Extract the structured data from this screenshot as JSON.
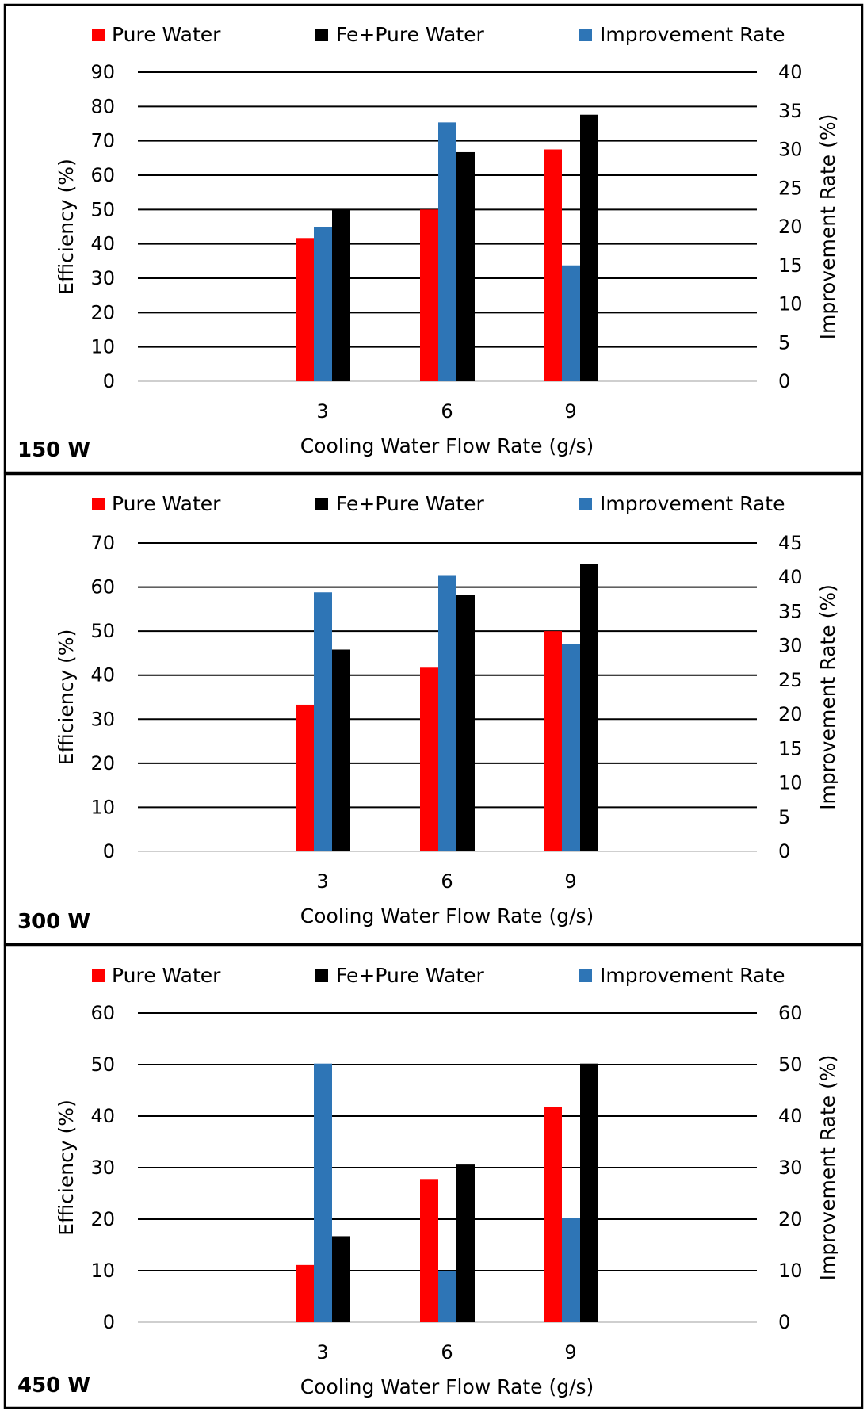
{
  "chart_data": [
    {
      "type": "bar",
      "panel_label": "150 W",
      "categories": [
        "3",
        "6",
        "9"
      ],
      "xlabel": "Cooling Water Flow Rate (g/s)",
      "ylabel": "Efficiency (%)",
      "y2label": "Improvement Rate (%)",
      "ylim": [
        0,
        90
      ],
      "y2lim": [
        0,
        40
      ],
      "yticks": [
        "0",
        "10",
        "20",
        "30",
        "40",
        "50",
        "60",
        "70",
        "80",
        "90"
      ],
      "y2ticks": [
        "0",
        "5",
        "10",
        "15",
        "20",
        "25",
        "30",
        "35",
        "40"
      ],
      "grid": true,
      "legend_position": "top",
      "series": [
        {
          "name": "Pure Water",
          "axis": "left",
          "color": "#ff0000",
          "values": [
            41.7,
            50.0,
            67.5
          ]
        },
        {
          "name": "Improvement Rate",
          "axis": "right",
          "color": "#2e75b6",
          "values": [
            20.0,
            33.5,
            15.0
          ]
        },
        {
          "name": "Fe+Pure Water",
          "axis": "left",
          "color": "#000000",
          "values": [
            50.0,
            66.7,
            77.6
          ]
        }
      ]
    },
    {
      "type": "bar",
      "panel_label": "300 W",
      "categories": [
        "3",
        "6",
        "9"
      ],
      "xlabel": "Cooling Water Flow Rate (g/s)",
      "ylabel": "Efficiency (%)",
      "y2label": "Improvement Rate (%)",
      "ylim": [
        0,
        70
      ],
      "y2lim": [
        0,
        45
      ],
      "yticks": [
        "0",
        "10",
        "20",
        "30",
        "40",
        "50",
        "60",
        "70"
      ],
      "y2ticks": [
        "0",
        "5",
        "10",
        "15",
        "20",
        "25",
        "30",
        "35",
        "40",
        "45"
      ],
      "grid": true,
      "legend_position": "top",
      "series": [
        {
          "name": "Pure Water",
          "axis": "left",
          "color": "#ff0000",
          "values": [
            33.3,
            41.7,
            50.0
          ]
        },
        {
          "name": "Improvement Rate",
          "axis": "right",
          "color": "#2e75b6",
          "values": [
            37.8,
            40.2,
            30.2
          ]
        },
        {
          "name": "Fe+Pure Water",
          "axis": "left",
          "color": "#000000",
          "values": [
            45.8,
            58.3,
            65.2
          ]
        }
      ]
    },
    {
      "type": "bar",
      "panel_label": "450 W",
      "categories": [
        "3",
        "6",
        "9"
      ],
      "xlabel": "Cooling Water Flow Rate (g/s)",
      "ylabel": "Efficiency (%)",
      "y2label": "Improvement Rate (%)",
      "ylim": [
        0,
        60
      ],
      "y2lim": [
        0,
        60
      ],
      "yticks": [
        "0",
        "10",
        "20",
        "30",
        "40",
        "50",
        "60"
      ],
      "y2ticks": [
        "0",
        "10",
        "20",
        "30",
        "40",
        "50",
        "60"
      ],
      "grid": true,
      "legend_position": "top",
      "series": [
        {
          "name": "Pure Water",
          "axis": "left",
          "color": "#ff0000",
          "values": [
            11.1,
            27.8,
            41.7
          ]
        },
        {
          "name": "Improvement Rate",
          "axis": "right",
          "color": "#2e75b6",
          "values": [
            50.2,
            10.0,
            20.3
          ]
        },
        {
          "name": "Fe+Pure Water",
          "axis": "left",
          "color": "#000000",
          "values": [
            16.7,
            30.6,
            50.2
          ]
        }
      ]
    }
  ],
  "legend_order": [
    "Pure Water",
    "Fe+Pure Water",
    "Improvement Rate"
  ]
}
